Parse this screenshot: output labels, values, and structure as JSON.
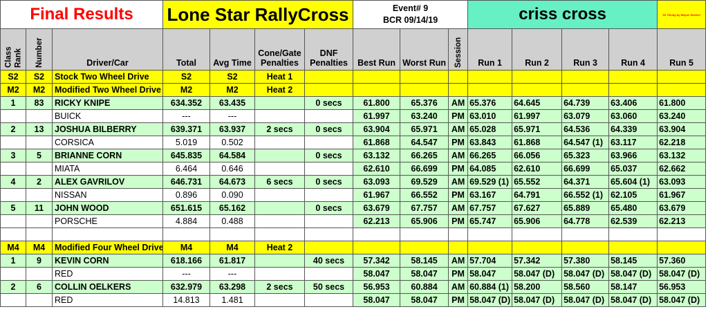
{
  "banner": {
    "title": "Final Results",
    "series": "Lone Star RallyCross",
    "event": "Event# 9",
    "date": "BCR 09/14/19",
    "course": "criss cross",
    "credit": "SZ Timing by Wayne Stoebel"
  },
  "table": {
    "columns": [
      "Class Rank",
      "Number",
      "Driver/Car",
      "Total",
      "Avg Time",
      "Cone/Gate Penalties",
      "DNF Penalties",
      "Best Run",
      "Worst Run",
      "Session",
      "Run 1",
      "Run 2",
      "Run 3",
      "Run 4",
      "Run 5"
    ],
    "sections": [
      {
        "headings": [
          [
            "S2",
            "S2",
            "Stock Two Wheel Drive",
            "S2",
            "S2",
            "Heat 1"
          ],
          [
            "M2",
            "M2",
            "Modified Two Wheel Drive",
            "M2",
            "M2",
            "Heat 2"
          ]
        ],
        "entries": [
          {
            "driver": [
              "1",
              "83",
              "RICKY KNIPE",
              "634.352",
              "63.435",
              null,
              "0 secs",
              "61.800",
              "65.376",
              "AM",
              "65.376",
              "64.645",
              "64.739",
              "63.406",
              "61.800"
            ],
            "car": [
              null,
              null,
              "BUICK",
              "---",
              "---",
              null,
              null,
              "61.997",
              "63.240",
              "PM",
              "63.010",
              "61.997",
              "63.079",
              "63.060",
              "63.240"
            ]
          },
          {
            "driver": [
              "2",
              "13",
              "JOSHUA BILBERRY",
              "639.371",
              "63.937",
              "2 secs",
              "0 secs",
              "63.904",
              "65.971",
              "AM",
              "65.028",
              "65.971",
              "64.536",
              "64.339",
              "63.904"
            ],
            "car": [
              null,
              null,
              "CORSICA",
              "5.019",
              "0.502",
              null,
              null,
              "61.868",
              "64.547",
              "PM",
              "63.843",
              "61.868",
              "64.547 (1)",
              "63.117",
              "62.218"
            ]
          },
          {
            "driver": [
              "3",
              "5",
              "BRIANNE CORN",
              "645.835",
              "64.584",
              null,
              "0 secs",
              "63.132",
              "66.265",
              "AM",
              "66.265",
              "66.056",
              "65.323",
              "63.966",
              "63.132"
            ],
            "car": [
              null,
              null,
              "MIATA",
              "6.464",
              "0.646",
              null,
              null,
              "62.610",
              "66.699",
              "PM",
              "64.085",
              "62.610",
              "66.699",
              "65.037",
              "62.662"
            ]
          },
          {
            "driver": [
              "4",
              "2",
              "ALEX GAVRILOV",
              "646.731",
              "64.673",
              "6 secs",
              "0 secs",
              "63.093",
              "69.529",
              "AM",
              "69.529 (1)",
              "65.552",
              "64.371",
              "65.604 (1)",
              "63.093"
            ],
            "car": [
              null,
              null,
              "NISSAN",
              "0.896",
              "0.090",
              null,
              null,
              "61.967",
              "66.552",
              "PM",
              "63.167",
              "64.791",
              "66.552 (1)",
              "62.105",
              "61.967"
            ]
          },
          {
            "driver": [
              "5",
              "11",
              "JOHN WOOD",
              "651.615",
              "65.162",
              null,
              "0 secs",
              "63.679",
              "67.757",
              "AM",
              "67.757",
              "67.627",
              "65.889",
              "65.480",
              "63.679"
            ],
            "car": [
              null,
              null,
              "PORSCHE",
              "4.884",
              "0.488",
              null,
              null,
              "62.213",
              "65.906",
              "PM",
              "65.747",
              "65.906",
              "64.778",
              "62.539",
              "62.213"
            ]
          }
        ]
      },
      {
        "headings": [
          [
            "M4",
            "M4",
            "Modified Four Wheel Drive",
            "M4",
            "M4",
            "Heat 2"
          ]
        ],
        "entries": [
          {
            "driver": [
              "1",
              "9",
              "KEVIN CORN",
              "618.166",
              "61.817",
              null,
              "40 secs",
              "57.342",
              "58.145",
              "AM",
              "57.704",
              "57.342",
              "57.380",
              "58.145",
              "57.360"
            ],
            "car": [
              null,
              null,
              "RED",
              "---",
              "---",
              null,
              null,
              "58.047",
              "58.047",
              "PM",
              "58.047",
              "58.047 (D)",
              "58.047 (D)",
              "58.047 (D)",
              "58.047 (D)"
            ]
          },
          {
            "driver": [
              "2",
              "6",
              "COLLIN OELKERS",
              "632.979",
              "63.298",
              "2 secs",
              "50 secs",
              "56.953",
              "60.884",
              "AM",
              "60.884 (1)",
              "58.200",
              "58.560",
              "58.147",
              "56.953"
            ],
            "car": [
              null,
              null,
              "RED",
              "14.813",
              "1.481",
              null,
              null,
              "58.047",
              "58.047",
              "PM",
              "58.047 (D)",
              "58.047 (D)",
              "58.047 (D)",
              "58.047 (D)",
              "58.047 (D)"
            ]
          }
        ]
      }
    ]
  }
}
